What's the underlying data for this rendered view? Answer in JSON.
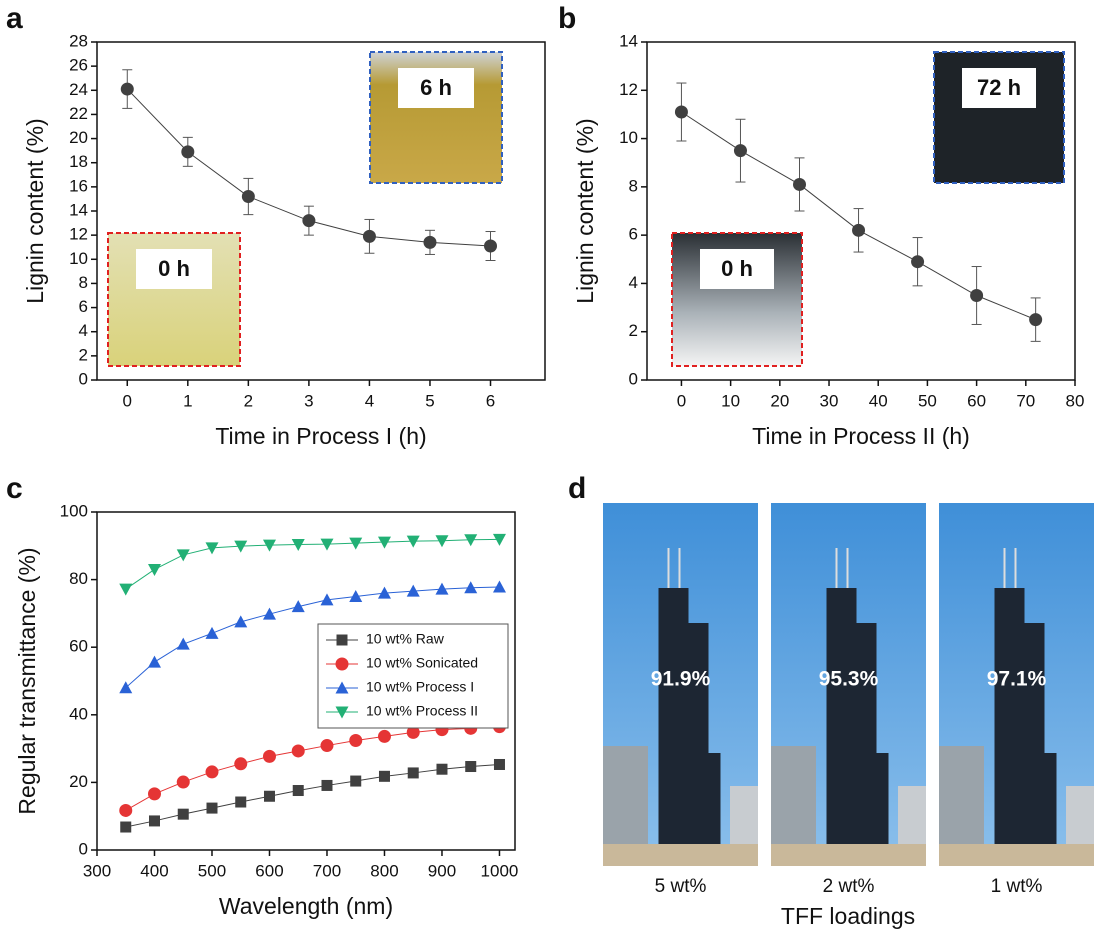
{
  "panel_labels": [
    "a",
    "b",
    "c",
    "d"
  ],
  "chart_data": [
    {
      "type": "line",
      "xlabel": "Time in Process I (h)",
      "ylabel": "Lignin content (%)",
      "x": [
        0,
        1,
        2,
        3,
        4,
        5,
        6
      ],
      "values": [
        24.1,
        18.9,
        15.2,
        13.2,
        11.9,
        11.4,
        11.1
      ],
      "errors": [
        1.6,
        1.2,
        1.5,
        1.2,
        1.4,
        1.0,
        1.2
      ],
      "color": "#404040",
      "xlim": [
        -0.5,
        6.9
      ],
      "xticks": [
        0,
        1,
        2,
        3,
        4,
        5,
        6
      ],
      "ylim": [
        0,
        28
      ],
      "yticks": [
        0,
        2,
        4,
        6,
        8,
        10,
        12,
        14,
        16,
        18,
        20,
        22,
        24,
        26,
        28
      ],
      "insets": [
        "0 h",
        "6 h"
      ]
    },
    {
      "type": "line",
      "xlabel": "Time in Process II (h)",
      "ylabel": "Lignin content (%)",
      "x": [
        0,
        12,
        24,
        36,
        48,
        60,
        72
      ],
      "values": [
        11.1,
        9.5,
        8.1,
        6.2,
        4.9,
        3.5,
        2.5
      ],
      "errors": [
        1.2,
        1.3,
        1.1,
        0.9,
        1.0,
        1.2,
        0.9
      ],
      "color": "#404040",
      "xlim": [
        -7,
        80
      ],
      "xticks": [
        0,
        10,
        20,
        30,
        40,
        50,
        60,
        70,
        80
      ],
      "ylim": [
        0,
        14
      ],
      "yticks": [
        0,
        2,
        4,
        6,
        8,
        10,
        12,
        14
      ],
      "insets": [
        "0 h",
        "72 h"
      ]
    },
    {
      "type": "scatter-line",
      "xlabel": "Wavelength (nm)",
      "ylabel": "Regular transmittance (%)",
      "x": [
        350,
        400,
        450,
        500,
        550,
        600,
        650,
        700,
        750,
        800,
        850,
        900,
        950,
        1000
      ],
      "series": [
        {
          "name": "10 wt% Raw",
          "color": "#404040",
          "marker": "square",
          "values": [
            6.8,
            8.6,
            10.6,
            12.4,
            14.2,
            15.9,
            17.6,
            19.1,
            20.4,
            21.8,
            22.8,
            23.9,
            24.7,
            25.3
          ]
        },
        {
          "name": "10 wt% Sonicated",
          "color": "#e53535",
          "marker": "circle",
          "values": [
            11.7,
            16.6,
            20.1,
            23.1,
            25.5,
            27.7,
            29.3,
            30.9,
            32.4,
            33.6,
            34.8,
            35.6,
            36.0,
            36.5
          ]
        },
        {
          "name": "10 wt% Process I",
          "color": "#2a62d6",
          "marker": "triangle-up",
          "values": [
            48.0,
            55.6,
            60.9,
            64.1,
            67.5,
            69.8,
            72.0,
            74.0,
            75.0,
            76.0,
            76.6,
            77.2,
            77.6,
            77.8
          ]
        },
        {
          "name": "10 wt% Process II",
          "color": "#22b075",
          "marker": "triangle-down",
          "values": [
            77.2,
            83.0,
            87.3,
            89.4,
            89.9,
            90.2,
            90.4,
            90.5,
            90.8,
            91.1,
            91.4,
            91.5,
            91.8,
            91.9
          ]
        }
      ],
      "xlim": [
        300,
        1027
      ],
      "xticks": [
        300,
        400,
        500,
        600,
        700,
        800,
        900,
        1000
      ],
      "ylim": [
        0,
        100
      ],
      "yticks": [
        0,
        20,
        40,
        60,
        80,
        100
      ],
      "legend": "center-right"
    }
  ],
  "photo_panel": {
    "values": [
      "91.9%",
      "95.3%",
      "97.1%"
    ],
    "categories": [
      "5 wt%",
      "2 wt%",
      "1 wt%"
    ],
    "xlabel": "TFF loadings"
  }
}
